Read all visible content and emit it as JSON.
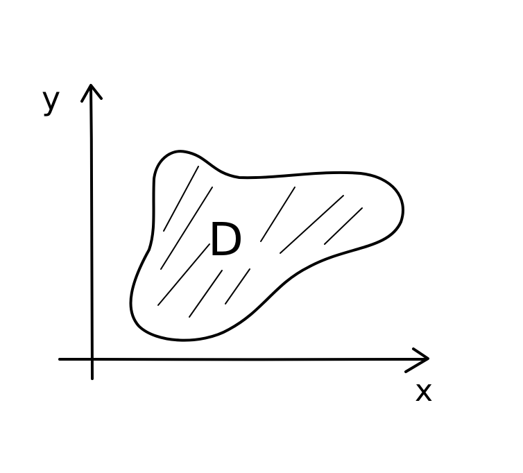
{
  "colors": {
    "background": "#ffffff",
    "ink": "#000000"
  },
  "labels": {
    "y_axis": "y",
    "x_axis": "x",
    "region": "D"
  }
}
